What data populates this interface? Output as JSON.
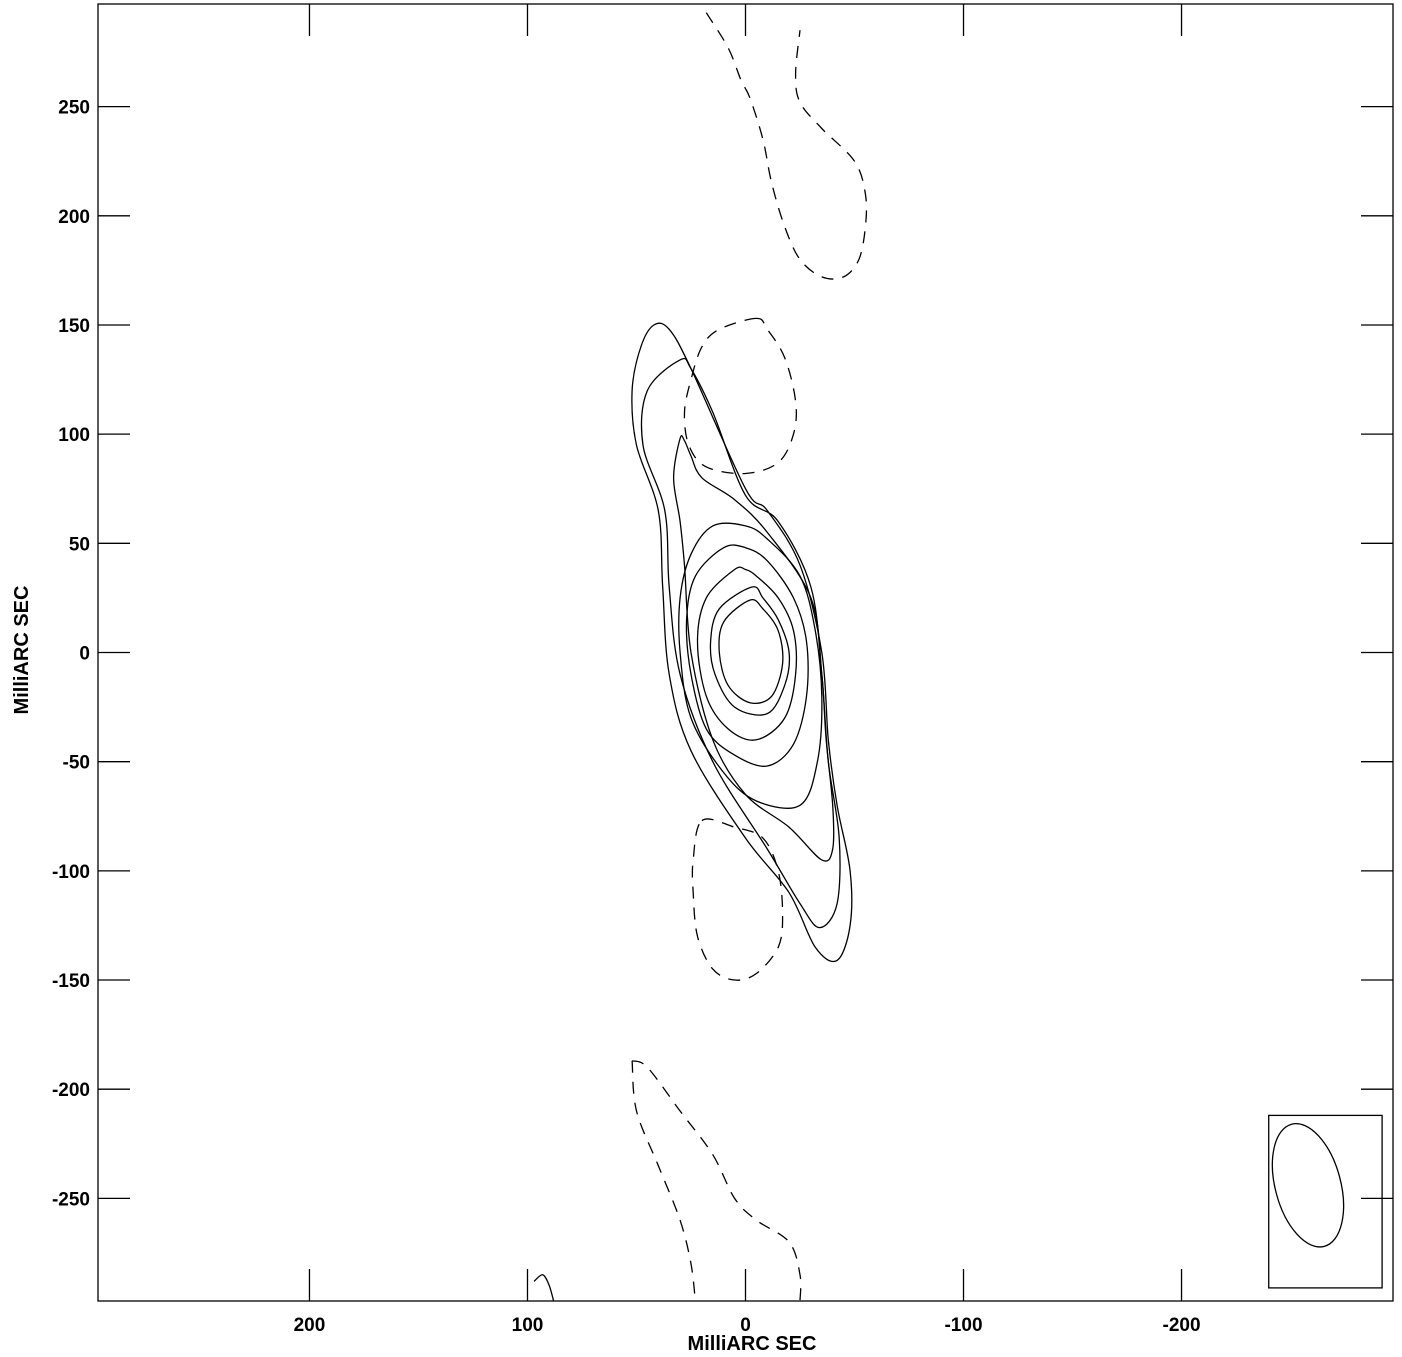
{
  "chart_data": {
    "type": "contour",
    "xlabel": "MilliARC SEC",
    "ylabel": "MilliARC SEC",
    "xlim": [
      297,
      -297
    ],
    "ylim": [
      -297,
      297
    ],
    "x_ticks": [
      200,
      100,
      0,
      -100,
      -200
    ],
    "y_ticks": [
      250,
      200,
      150,
      100,
      50,
      0,
      -50,
      -100,
      -150,
      -200,
      -250
    ],
    "x_tick_labels": [
      "200",
      "100",
      "0",
      "-100",
      "-200"
    ],
    "y_tick_labels": [
      "250",
      "200",
      "150",
      "100",
      "50",
      "0",
      "-50",
      "-100",
      "-150",
      "-200",
      "-250"
    ],
    "grid": false,
    "positive_contours": [
      {
        "level": 1,
        "points": [
          [
            42,
            150
          ],
          [
            48,
            140
          ],
          [
            52,
            120
          ],
          [
            50,
            95
          ],
          [
            40,
            65
          ],
          [
            38,
            30
          ],
          [
            35,
            -10
          ],
          [
            25,
            -45
          ],
          [
            0,
            -85
          ],
          [
            -20,
            -110
          ],
          [
            -32,
            -135
          ],
          [
            -42,
            -141
          ],
          [
            -48,
            -125
          ],
          [
            -48,
            -100
          ],
          [
            -42,
            -70
          ],
          [
            -38,
            -40
          ],
          [
            -35,
            0
          ],
          [
            -25,
            40
          ],
          [
            -10,
            65
          ],
          [
            0,
            75
          ],
          [
            25,
            130
          ],
          [
            35,
            148
          ]
        ]
      },
      {
        "level": 2,
        "points": [
          [
            30,
            134
          ],
          [
            45,
            120
          ],
          [
            47,
            95
          ],
          [
            37,
            65
          ],
          [
            35,
            30
          ],
          [
            30,
            -10
          ],
          [
            15,
            -50
          ],
          [
            -10,
            -90
          ],
          [
            -25,
            -115
          ],
          [
            -34,
            -126
          ],
          [
            -42,
            -115
          ],
          [
            -43,
            -85
          ],
          [
            -38,
            -50
          ],
          [
            -35,
            -10
          ],
          [
            -30,
            30
          ],
          [
            -15,
            60
          ],
          [
            0,
            72
          ],
          [
            15,
            110
          ],
          [
            25,
            130
          ]
        ]
      },
      {
        "level": 3,
        "points": [
          [
            30,
            98
          ],
          [
            33,
            80
          ],
          [
            30,
            60
          ],
          [
            28,
            40
          ],
          [
            25,
            0
          ],
          [
            15,
            -40
          ],
          [
            0,
            -65
          ],
          [
            -20,
            -80
          ],
          [
            -35,
            -95
          ],
          [
            -40,
            -90
          ],
          [
            -40,
            -70
          ],
          [
            -37,
            -40
          ],
          [
            -35,
            -10
          ],
          [
            -30,
            25
          ],
          [
            -10,
            55
          ],
          [
            5,
            70
          ],
          [
            20,
            80
          ],
          [
            25,
            90
          ],
          [
            28,
            97
          ]
        ]
      },
      {
        "level": 4,
        "points": [
          [
            15,
            58
          ],
          [
            25,
            45
          ],
          [
            30,
            25
          ],
          [
            30,
            0
          ],
          [
            25,
            -30
          ],
          [
            10,
            -55
          ],
          [
            -5,
            -68
          ],
          [
            -25,
            -70
          ],
          [
            -33,
            -50
          ],
          [
            -35,
            -20
          ],
          [
            -32,
            10
          ],
          [
            -25,
            35
          ],
          [
            -10,
            52
          ],
          [
            0,
            58
          ]
        ]
      },
      {
        "level": 5,
        "points": [
          [
            10,
            48
          ],
          [
            23,
            35
          ],
          [
            27,
            15
          ],
          [
            25,
            -10
          ],
          [
            18,
            -35
          ],
          [
            5,
            -47
          ],
          [
            -10,
            -52
          ],
          [
            -22,
            -42
          ],
          [
            -28,
            -20
          ],
          [
            -28,
            5
          ],
          [
            -22,
            25
          ],
          [
            -10,
            42
          ],
          [
            0,
            48
          ]
        ]
      },
      {
        "level": 6,
        "points": [
          [
            5,
            38
          ],
          [
            18,
            25
          ],
          [
            22,
            5
          ],
          [
            18,
            -20
          ],
          [
            8,
            -35
          ],
          [
            -5,
            -40
          ],
          [
            -18,
            -30
          ],
          [
            -23,
            -10
          ],
          [
            -22,
            10
          ],
          [
            -15,
            25
          ],
          [
            -5,
            35
          ],
          [
            0,
            38
          ]
        ]
      },
      {
        "level": 7,
        "points": [
          [
            -3,
            30
          ],
          [
            12,
            20
          ],
          [
            16,
            5
          ],
          [
            14,
            -10
          ],
          [
            5,
            -25
          ],
          [
            -10,
            -28
          ],
          [
            -18,
            -15
          ],
          [
            -20,
            0
          ],
          [
            -15,
            15
          ],
          [
            -8,
            25
          ]
        ]
      },
      {
        "level": 8,
        "points": [
          [
            -2,
            24
          ],
          [
            10,
            14
          ],
          [
            12,
            0
          ],
          [
            8,
            -15
          ],
          [
            -2,
            -23
          ],
          [
            -12,
            -20
          ],
          [
            -17,
            -5
          ],
          [
            -15,
            10
          ],
          [
            -8,
            20
          ]
        ]
      },
      {
        "level": 9,
        "points": [
          [
            97,
            -288
          ],
          [
            93,
            -285
          ],
          [
            90,
            -290
          ],
          [
            88,
            -297
          ]
        ]
      }
    ],
    "negative_contours": [
      {
        "level": -1,
        "points": [
          [
            18,
            293
          ],
          [
            8,
            277
          ],
          [
            2,
            262
          ],
          [
            -2,
            254
          ],
          [
            -8,
            235
          ],
          [
            -12,
            215
          ],
          [
            -18,
            195
          ],
          [
            -25,
            180
          ],
          [
            -35,
            172
          ],
          [
            -45,
            172
          ],
          [
            -52,
            180
          ],
          [
            -55,
            195
          ],
          [
            -55,
            210
          ],
          [
            -50,
            225
          ],
          [
            -35,
            240
          ],
          [
            -25,
            252
          ],
          [
            -23,
            265
          ],
          [
            -25,
            285
          ]
        ]
      },
      {
        "level": -1,
        "points": [
          [
            -5,
            153
          ],
          [
            12,
            148
          ],
          [
            20,
            140
          ],
          [
            25,
            125
          ],
          [
            28,
            110
          ],
          [
            26,
            95
          ],
          [
            18,
            85
          ],
          [
            0,
            82
          ],
          [
            -15,
            87
          ],
          [
            -22,
            100
          ],
          [
            -23,
            115
          ],
          [
            -18,
            135
          ],
          [
            -10,
            148
          ]
        ]
      },
      {
        "level": -1,
        "points": [
          [
            20,
            -77
          ],
          [
            5,
            -80
          ],
          [
            -8,
            -85
          ],
          [
            -15,
            -100
          ],
          [
            -17,
            -120
          ],
          [
            -15,
            -135
          ],
          [
            -5,
            -147
          ],
          [
            5,
            -150
          ],
          [
            15,
            -145
          ],
          [
            22,
            -130
          ],
          [
            24,
            -110
          ],
          [
            24,
            -95
          ]
        ]
      },
      {
        "level": -1,
        "points": [
          [
            52,
            -187
          ],
          [
            45,
            -190
          ],
          [
            30,
            -210
          ],
          [
            15,
            -230
          ],
          [
            5,
            -250
          ],
          [
            -5,
            -260
          ],
          [
            -20,
            -270
          ],
          [
            -25,
            -285
          ],
          [
            -25,
            -297
          ]
        ]
      },
      {
        "level": -1,
        "points": [
          [
            52,
            -187
          ],
          [
            50,
            -210
          ],
          [
            40,
            -235
          ],
          [
            30,
            -260
          ],
          [
            25,
            -280
          ],
          [
            23,
            -297
          ]
        ]
      }
    ],
    "beam": {
      "major_mas": 58,
      "minor_mas": 30,
      "position_angle_deg": -15,
      "center": [
        -258,
        -244
      ]
    },
    "beam_box": {
      "x": [
        -292,
        -240
      ],
      "y": [
        -212,
        -291
      ]
    }
  }
}
